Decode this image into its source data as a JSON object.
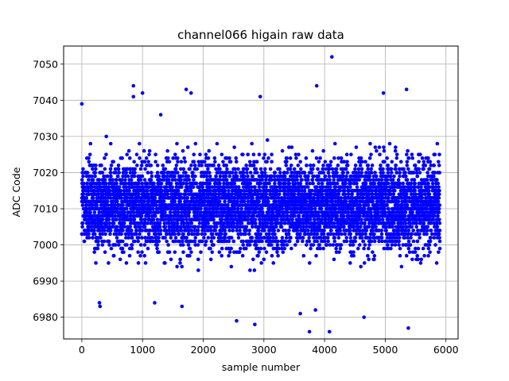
{
  "chart_data": {
    "type": "scatter",
    "title": "channel066 higain raw data",
    "xlabel": "sample number",
    "ylabel": "ADC Code",
    "xlim": [
      -300,
      6200
    ],
    "ylim": [
      6974,
      7055
    ],
    "xticks": [
      0,
      1000,
      2000,
      3000,
      4000,
      5000,
      6000
    ],
    "yticks": [
      6980,
      6990,
      7000,
      7010,
      7020,
      7030,
      7040,
      7050
    ],
    "grid": true,
    "marker_color": "#0000ff",
    "n_samples": 5900,
    "baseline_mean": 7011,
    "band_typical": [
      6993,
      7030
    ],
    "outliers": [
      {
        "x": 0,
        "y": 7039
      },
      {
        "x": 850,
        "y": 7044
      },
      {
        "x": 850,
        "y": 7041
      },
      {
        "x": 1000,
        "y": 7042
      },
      {
        "x": 1300,
        "y": 7036
      },
      {
        "x": 1720,
        "y": 7043
      },
      {
        "x": 1800,
        "y": 7042
      },
      {
        "x": 2940,
        "y": 7041
      },
      {
        "x": 3870,
        "y": 7044
      },
      {
        "x": 4120,
        "y": 7052
      },
      {
        "x": 4970,
        "y": 7042
      },
      {
        "x": 5350,
        "y": 7043
      },
      {
        "x": 290,
        "y": 6984
      },
      {
        "x": 300,
        "y": 6983
      },
      {
        "x": 1200,
        "y": 6984
      },
      {
        "x": 1650,
        "y": 6983
      },
      {
        "x": 2550,
        "y": 6979
      },
      {
        "x": 2850,
        "y": 6978
      },
      {
        "x": 3750,
        "y": 6976
      },
      {
        "x": 4080,
        "y": 6976
      },
      {
        "x": 4650,
        "y": 6980
      },
      {
        "x": 5380,
        "y": 6977
      },
      {
        "x": 3850,
        "y": 6982
      },
      {
        "x": 3600,
        "y": 6981
      }
    ]
  }
}
